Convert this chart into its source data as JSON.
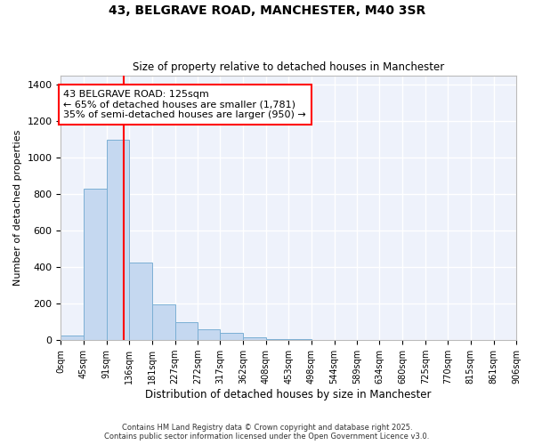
{
  "title_line1": "43, BELGRAVE ROAD, MANCHESTER, M40 3SR",
  "title_line2": "Size of property relative to detached houses in Manchester",
  "xlabel": "Distribution of detached houses by size in Manchester",
  "ylabel": "Number of detached properties",
  "annotation_line1": "43 BELGRAVE ROAD: 125sqm",
  "annotation_line2": "← 65% of detached houses are smaller (1,781)",
  "annotation_line3": "35% of semi-detached houses are larger (950) →",
  "footer_line1": "Contains HM Land Registry data © Crown copyright and database right 2025.",
  "footer_line2": "Contains public sector information licensed under the Open Government Licence v3.0.",
  "bar_edges": [
    0,
    45,
    91,
    136,
    181,
    227,
    272,
    317,
    362,
    408,
    453,
    498,
    544,
    589,
    634,
    680,
    725,
    770,
    815,
    861,
    906
  ],
  "bar_heights": [
    25,
    830,
    1095,
    425,
    195,
    100,
    58,
    38,
    18,
    8,
    5,
    3,
    2,
    1,
    1,
    1,
    0,
    0,
    0,
    0
  ],
  "bar_color": "#c5d8f0",
  "bar_edgecolor": "#7bafd4",
  "property_line_x": 125,
  "property_line_color": "red",
  "annotation_box_color": "red",
  "bg_color": "#eef2fb",
  "ylim": [
    0,
    1450
  ],
  "xlim": [
    0,
    906
  ],
  "grid_color": "#ffffff",
  "tick_labels": [
    "0sqm",
    "45sqm",
    "91sqm",
    "136sqm",
    "181sqm",
    "227sqm",
    "272sqm",
    "317sqm",
    "362sqm",
    "408sqm",
    "453sqm",
    "498sqm",
    "544sqm",
    "589sqm",
    "634sqm",
    "680sqm",
    "725sqm",
    "770sqm",
    "815sqm",
    "861sqm",
    "906sqm"
  ],
  "yticks": [
    0,
    200,
    400,
    600,
    800,
    1000,
    1200,
    1400
  ]
}
